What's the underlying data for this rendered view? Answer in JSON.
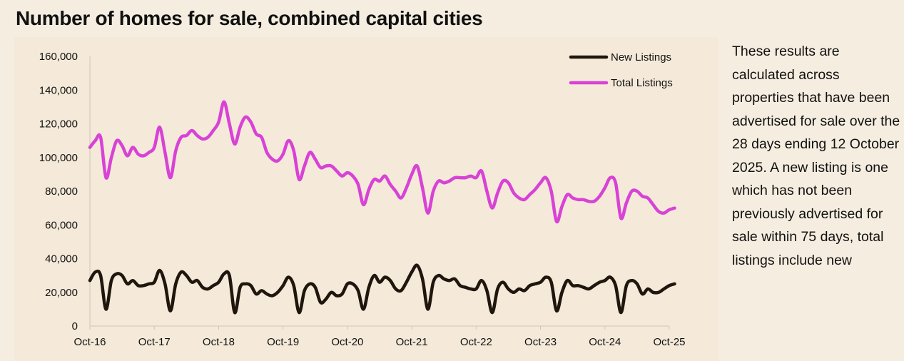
{
  "title": "Number of homes for sale, combined capital cities",
  "note": "These results are calculated across properties that have been advertised for sale over the 28 days ending 12 October 2025. A new listing is one which  has not been previously advertised for sale within 75 days, total listings include new",
  "chart_data": {
    "type": "line",
    "title": "Number of homes for sale, combined capital cities",
    "xlabel": "",
    "ylabel": "",
    "ylim": [
      0,
      160000
    ],
    "yticks": [
      "0",
      "20,000",
      "40,000",
      "60,000",
      "80,000",
      "100,000",
      "120,000",
      "140,000",
      "160,000"
    ],
    "xticks": [
      "Oct-16",
      "Oct-17",
      "Oct-18",
      "Oct-19",
      "Oct-20",
      "Oct-21",
      "Oct-22",
      "Oct-23",
      "Oct-24",
      "Oct-25"
    ],
    "grid": false,
    "legend_position": "top-right",
    "x_start": "2016-10",
    "x_step": "month",
    "series": [
      {
        "name": "New Listings",
        "color": "#1f160d",
        "values": [
          27000,
          32000,
          30000,
          10000,
          27000,
          31000,
          30000,
          25000,
          27000,
          24000,
          24000,
          25000,
          26000,
          33000,
          25000,
          9000,
          25000,
          32000,
          30000,
          26000,
          27000,
          23000,
          22000,
          24000,
          26000,
          31000,
          30000,
          8000,
          23000,
          25000,
          24000,
          19000,
          21000,
          19000,
          18000,
          20000,
          24000,
          29000,
          24000,
          8000,
          21000,
          25000,
          23000,
          14000,
          16000,
          20000,
          18000,
          19000,
          25000,
          25000,
          21000,
          10000,
          23000,
          30000,
          26000,
          29000,
          27000,
          22000,
          21000,
          26000,
          32000,
          36000,
          28000,
          10000,
          26000,
          30000,
          28000,
          27000,
          28000,
          24000,
          23000,
          22000,
          22000,
          27000,
          21000,
          8000,
          22000,
          26000,
          22000,
          20000,
          22000,
          21000,
          24000,
          25000,
          26000,
          29000,
          26000,
          9000,
          20000,
          27000,
          24000,
          24000,
          23000,
          22000,
          24000,
          26000,
          27000,
          29000,
          24000,
          8000,
          24000,
          27000,
          25000,
          19000,
          22000,
          20000,
          20000,
          22000,
          24000,
          25000
        ]
      },
      {
        "name": "Total Listings",
        "color": "#d842d6",
        "values": [
          106000,
          110000,
          112000,
          88000,
          100000,
          110000,
          107000,
          101000,
          106000,
          102000,
          101000,
          103000,
          106000,
          118000,
          103000,
          88000,
          104000,
          112000,
          113000,
          116000,
          113000,
          111000,
          112000,
          116000,
          121000,
          133000,
          120000,
          108000,
          118000,
          124000,
          121000,
          114000,
          112000,
          103000,
          99000,
          98000,
          102000,
          110000,
          104000,
          87000,
          95000,
          103000,
          99000,
          94000,
          95000,
          95000,
          92000,
          89000,
          91000,
          89000,
          84000,
          72000,
          81000,
          87000,
          86000,
          89000,
          84000,
          80000,
          76000,
          82000,
          90000,
          95000,
          82000,
          67000,
          80000,
          86000,
          85000,
          86000,
          88000,
          88000,
          88000,
          89000,
          88000,
          92000,
          80000,
          70000,
          79000,
          86000,
          85000,
          79000,
          76000,
          75000,
          78000,
          81000,
          85000,
          88000,
          80000,
          62000,
          71000,
          78000,
          76000,
          75000,
          75000,
          74000,
          74000,
          77000,
          82000,
          88000,
          85000,
          64000,
          73000,
          80000,
          80000,
          77000,
          76000,
          72000,
          68000,
          67000,
          69000,
          70000
        ]
      }
    ]
  }
}
